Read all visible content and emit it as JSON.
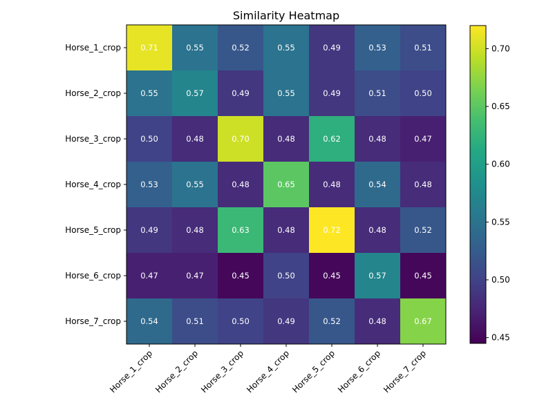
{
  "chart_data": {
    "type": "heatmap",
    "title": "Similarity Heatmap",
    "xlabel": "",
    "ylabel": "",
    "x_categories": [
      "Horse_1_crop",
      "Horse_2_crop",
      "Horse_3_crop",
      "Horse_4_crop",
      "Horse_5_crop",
      "Horse_6_crop",
      "Horse_7_crop"
    ],
    "y_categories": [
      "Horse_1_crop",
      "Horse_2_crop",
      "Horse_3_crop",
      "Horse_4_crop",
      "Horse_5_crop",
      "Horse_6_crop",
      "Horse_7_crop"
    ],
    "values": [
      [
        0.71,
        0.55,
        0.52,
        0.55,
        0.49,
        0.53,
        0.51
      ],
      [
        0.55,
        0.57,
        0.49,
        0.55,
        0.49,
        0.51,
        0.5
      ],
      [
        0.5,
        0.48,
        0.7,
        0.48,
        0.62,
        0.48,
        0.47
      ],
      [
        0.53,
        0.55,
        0.48,
        0.65,
        0.48,
        0.54,
        0.48
      ],
      [
        0.49,
        0.48,
        0.63,
        0.48,
        0.72,
        0.48,
        0.52
      ],
      [
        0.47,
        0.47,
        0.45,
        0.5,
        0.45,
        0.57,
        0.45
      ],
      [
        0.54,
        0.51,
        0.5,
        0.49,
        0.52,
        0.48,
        0.67
      ]
    ],
    "value_labels": [
      [
        "0.71",
        "0.55",
        "0.52",
        "0.55",
        "0.49",
        "0.53",
        "0.51"
      ],
      [
        "0.55",
        "0.57",
        "0.49",
        "0.55",
        "0.49",
        "0.51",
        "0.50"
      ],
      [
        "0.50",
        "0.48",
        "0.70",
        "0.48",
        "0.62",
        "0.48",
        "0.47"
      ],
      [
        "0.53",
        "0.55",
        "0.48",
        "0.65",
        "0.48",
        "0.54",
        "0.48"
      ],
      [
        "0.49",
        "0.48",
        "0.63",
        "0.48",
        "0.72",
        "0.48",
        "0.52"
      ],
      [
        "0.47",
        "0.47",
        "0.45",
        "0.50",
        "0.45",
        "0.57",
        "0.45"
      ],
      [
        "0.54",
        "0.51",
        "0.50",
        "0.49",
        "0.52",
        "0.48",
        "0.67"
      ]
    ],
    "colormap": "viridis",
    "color_range": [
      0.445,
      0.72
    ],
    "colorbar": {
      "ticks": [
        0.45,
        0.5,
        0.55,
        0.6,
        0.65,
        0.7
      ],
      "tick_labels": [
        "0.45",
        "0.50",
        "0.55",
        "0.60",
        "0.65",
        "0.70"
      ],
      "placement": "right"
    },
    "x_tick_rotation_deg": 45,
    "grid": false
  }
}
